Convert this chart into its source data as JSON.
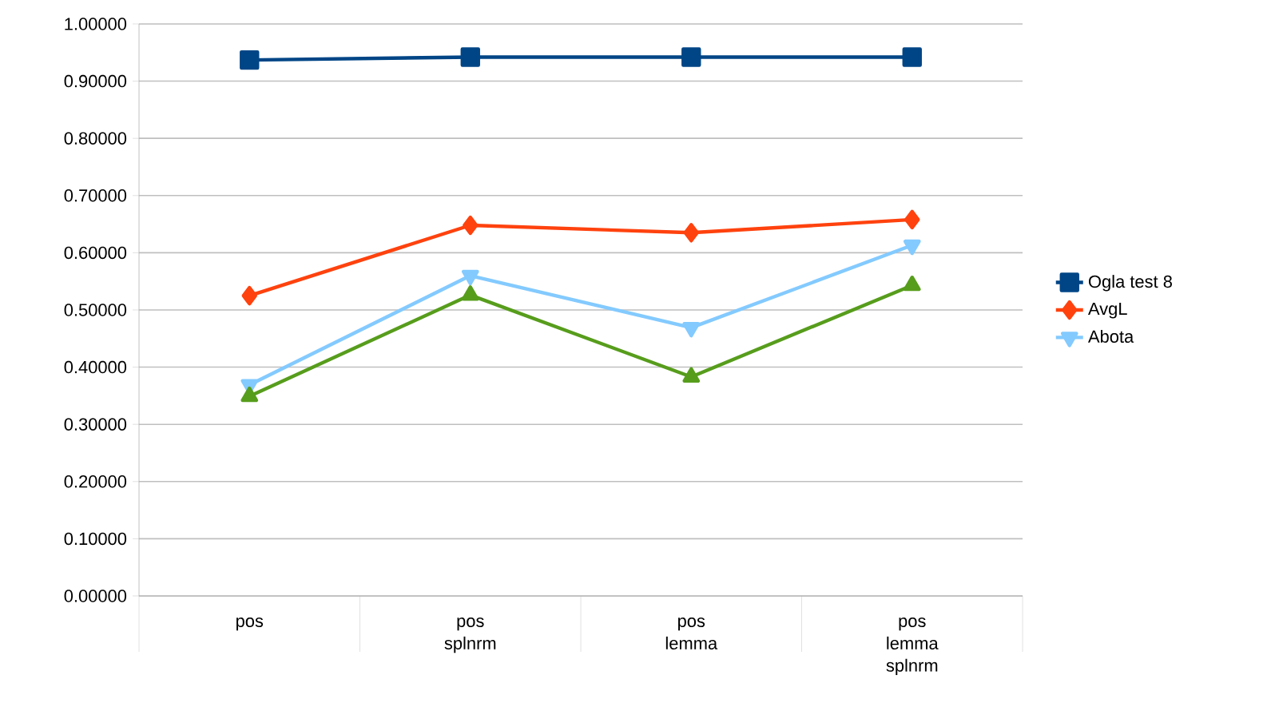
{
  "chart_data": {
    "type": "line",
    "categories": [
      "pos",
      "pos splnrm",
      "pos lemma",
      "pos lemma splnrm"
    ],
    "series": [
      {
        "name": "Ogla test 8",
        "color": "#004586",
        "marker": "square",
        "values": [
          0.937,
          0.942,
          0.942,
          0.942
        ]
      },
      {
        "name": "AvgL",
        "color": "#ff420e",
        "marker": "diamond",
        "values": [
          0.525,
          0.648,
          0.635,
          0.658
        ]
      },
      {
        "name": "Abota",
        "color": "#83caff",
        "marker": "triangle-down",
        "values": [
          0.369,
          0.56,
          0.469,
          0.613
        ]
      },
      {
        "color": "#579d1c",
        "marker": "triangle",
        "values": [
          0.349,
          0.526,
          0.383,
          0.543
        ]
      }
    ],
    "ylim": [
      0,
      1
    ],
    "yticks": [
      {
        "value": 0,
        "label": "0.00000"
      },
      {
        "value": 0.1,
        "label": "0.10000"
      },
      {
        "value": 0.2,
        "label": "0.20000"
      },
      {
        "value": 0.3,
        "label": "0.30000"
      },
      {
        "value": 0.4,
        "label": "0.40000"
      },
      {
        "value": 0.5,
        "label": "0.50000"
      },
      {
        "value": 0.6,
        "label": "0.60000"
      },
      {
        "value": 0.7,
        "label": "0.70000"
      },
      {
        "value": 0.8,
        "label": "0.80000"
      },
      {
        "value": 0.9,
        "label": "0.90000"
      },
      {
        "value": 1,
        "label": "1.00000"
      }
    ],
    "grid": "y",
    "legend": "right",
    "line_style": "solid"
  }
}
